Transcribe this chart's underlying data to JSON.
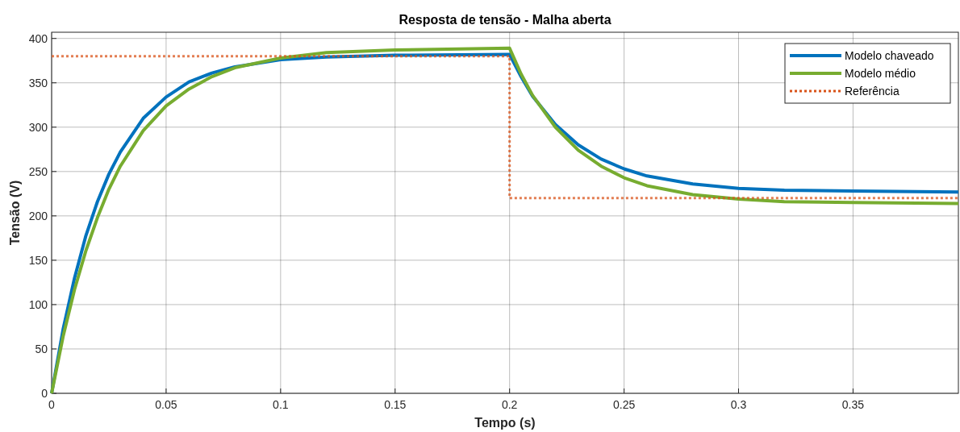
{
  "chart_data": {
    "type": "line",
    "title": "Resposta de tensão - Malha aberta",
    "xlabel": "Tempo (s)",
    "ylabel": "Tensão (V)",
    "xlim": [
      0,
      0.396
    ],
    "ylim": [
      0,
      407
    ],
    "xticks": [
      0,
      0.05,
      0.1,
      0.15,
      0.2,
      0.25,
      0.3,
      0.35
    ],
    "yticks": [
      0,
      50,
      100,
      150,
      200,
      250,
      300,
      350,
      400
    ],
    "grid": true,
    "legend": "top right",
    "series": [
      {
        "name": "Modelo chaveado",
        "color": "#0072bd",
        "line_style": "solid",
        "x": [
          0,
          0.005,
          0.01,
          0.015,
          0.02,
          0.025,
          0.03,
          0.04,
          0.05,
          0.06,
          0.07,
          0.08,
          0.1,
          0.12,
          0.15,
          0.2,
          0.205,
          0.21,
          0.22,
          0.23,
          0.24,
          0.25,
          0.26,
          0.28,
          0.3,
          0.32,
          0.35,
          0.396
        ],
        "values": [
          0,
          72,
          130,
          178,
          216,
          247,
          272,
          310,
          334,
          351,
          361,
          368,
          376,
          379,
          381,
          382,
          357,
          335,
          303,
          280,
          264,
          253,
          245,
          236,
          231,
          229,
          228,
          227
        ]
      },
      {
        "name": "Modelo médio",
        "color": "#77ac30",
        "line_style": "solid",
        "x": [
          0,
          0.005,
          0.01,
          0.015,
          0.02,
          0.025,
          0.03,
          0.04,
          0.05,
          0.06,
          0.07,
          0.08,
          0.1,
          0.12,
          0.15,
          0.2,
          0.205,
          0.21,
          0.22,
          0.23,
          0.24,
          0.25,
          0.26,
          0.28,
          0.3,
          0.32,
          0.35,
          0.396
        ],
        "values": [
          0,
          64,
          117,
          161,
          198,
          230,
          256,
          296,
          324,
          343,
          357,
          367,
          378,
          384,
          387,
          389,
          360,
          336,
          300,
          274,
          256,
          243,
          234,
          224,
          219,
          216,
          215,
          214
        ]
      },
      {
        "name": "Referência",
        "color": "#d95319",
        "line_style": "dotted",
        "x": [
          0,
          0.2,
          0.2,
          0.396
        ],
        "values": [
          380,
          380,
          220,
          220
        ]
      }
    ]
  }
}
